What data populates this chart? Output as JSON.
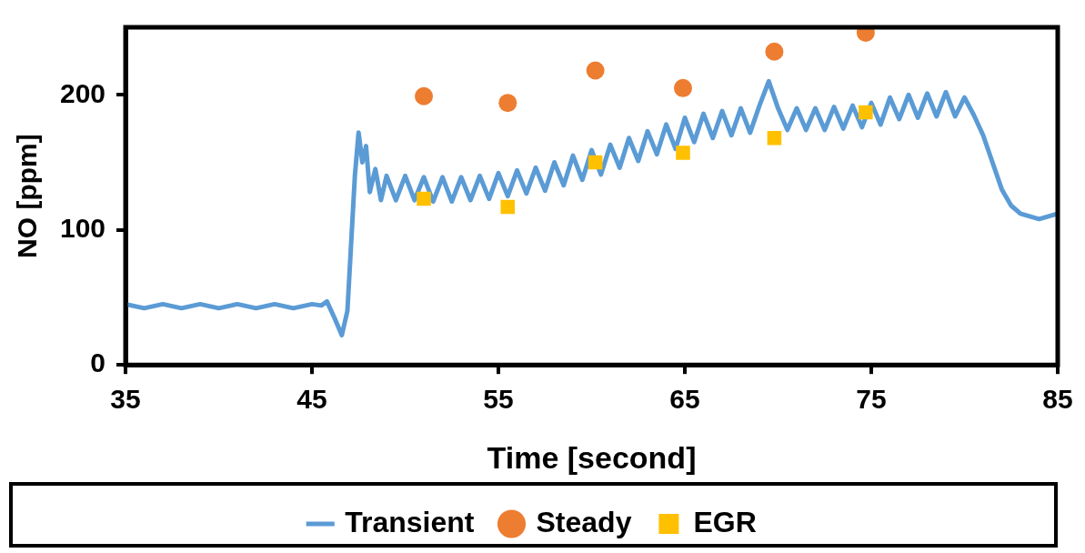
{
  "chart_data": {
    "type": "line",
    "xlabel": "Time [second]",
    "ylabel": "NO [ppm]",
    "xlim": [
      35,
      85
    ],
    "xticks": [
      35,
      45,
      55,
      65,
      75,
      85
    ],
    "ylim": [
      0,
      250
    ],
    "yticks": [
      0,
      100,
      200
    ],
    "grid": false,
    "legend": "bottom",
    "series": [
      {
        "name": "Transient",
        "type": "line",
        "marker": "none",
        "color": "#5b9bd5",
        "x": [
          35,
          36,
          37,
          38,
          39,
          40,
          41,
          42,
          43,
          44,
          45,
          45.5,
          45.8,
          46.2,
          46.6,
          46.9,
          47.1,
          47.3,
          47.5,
          47.7,
          47.9,
          48.1,
          48.4,
          48.7,
          49,
          49.5,
          50,
          50.5,
          51,
          51.5,
          52,
          52.5,
          53,
          53.5,
          54,
          54.5,
          55,
          55.5,
          56,
          56.5,
          57,
          57.5,
          58,
          58.5,
          59,
          59.5,
          60,
          60.5,
          61,
          61.5,
          62,
          62.5,
          63,
          63.5,
          64,
          64.5,
          65,
          65.5,
          66,
          66.5,
          67,
          67.5,
          68,
          68.5,
          69,
          69.5,
          70,
          70.5,
          71,
          71.5,
          72,
          72.5,
          73,
          73.5,
          74,
          74.5,
          75,
          75.5,
          76,
          76.5,
          77,
          77.5,
          78,
          78.5,
          79,
          79.5,
          80,
          80.5,
          81,
          81.5,
          82,
          82.5,
          83,
          84,
          85
        ],
        "values": [
          45,
          42,
          45,
          42,
          45,
          42,
          45,
          42,
          45,
          42,
          45,
          44,
          47,
          35,
          22,
          40,
          90,
          140,
          172,
          150,
          162,
          128,
          145,
          122,
          140,
          122,
          140,
          122,
          139,
          121,
          139,
          121,
          139,
          122,
          140,
          123,
          142,
          125,
          144,
          127,
          146,
          129,
          150,
          133,
          155,
          137,
          159,
          141,
          163,
          146,
          168,
          151,
          173,
          156,
          178,
          160,
          183,
          165,
          186,
          168,
          188,
          170,
          190,
          172,
          192,
          210,
          190,
          174,
          190,
          174,
          190,
          174,
          191,
          175,
          192,
          176,
          194,
          178,
          198,
          182,
          200,
          183,
          201,
          184,
          202,
          184,
          198,
          185,
          170,
          150,
          130,
          118,
          112,
          108,
          112
        ]
      },
      {
        "name": "Steady",
        "type": "scatter",
        "marker": "circle",
        "color": "#ed7d31",
        "x": [
          51,
          55.5,
          60.2,
          64.9,
          69.8,
          74.7
        ],
        "values": [
          199,
          194,
          218,
          205,
          232,
          246
        ]
      },
      {
        "name": "EGR",
        "type": "scatter",
        "marker": "square",
        "color": "#ffc000",
        "x": [
          51,
          55.5,
          60.2,
          64.9,
          69.8,
          74.7
        ],
        "values": [
          123,
          117,
          150,
          157,
          168,
          187
        ]
      }
    ]
  }
}
